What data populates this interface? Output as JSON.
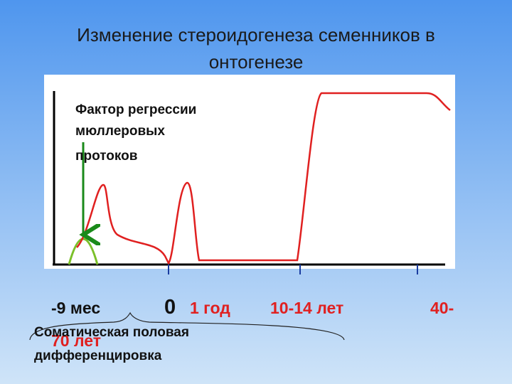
{
  "title": [
    "Изменение стероидогенеза семенников в",
    "онтогенезе"
  ],
  "annotation": [
    "Фактор регрессии",
    "мюллеровых",
    "протоков"
  ],
  "timeline": {
    "prenatal": "-9 мес",
    "birth": "0",
    "year": "1 год",
    "puberty": "10-14 лет",
    "adult_start": "40-",
    "adult_end": "70 лет"
  },
  "bracket_label": [
    "Соматическая половая",
    "дифференцировка"
  ]
}
